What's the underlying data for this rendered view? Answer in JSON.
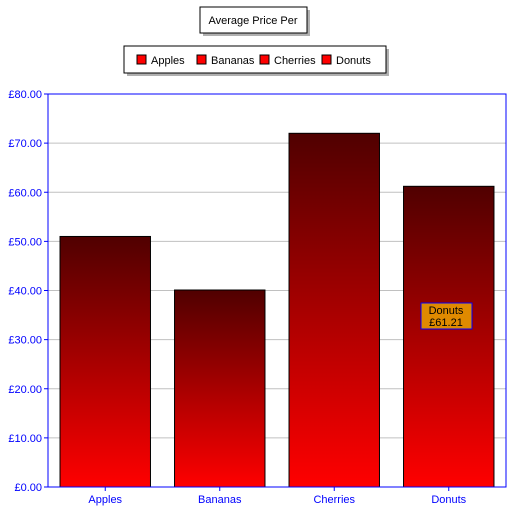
{
  "chart_data": {
    "type": "bar",
    "title": "Average Price Per",
    "categories": [
      "Apples",
      "Bananas",
      "Cherries",
      "Donuts"
    ],
    "series": [
      {
        "name": "Average Price Per",
        "values": [
          51.0,
          40.1,
          72.0,
          61.21
        ]
      }
    ],
    "legend": {
      "position": "top",
      "entries": [
        "Apples",
        "Bananas",
        "Cherries",
        "Donuts"
      ]
    },
    "ylim": [
      0,
      80
    ],
    "yticks": [
      "£0.00",
      "£10.00",
      "£20.00",
      "£30.00",
      "£40.00",
      "£50.00",
      "£60.00",
      "£70.00",
      "£80.00"
    ],
    "grid": true,
    "tooltip": {
      "category": "Donuts",
      "value": "£61.21"
    }
  },
  "colors": {
    "bar_top": "#500000",
    "bar_bottom": "#ff0000",
    "legend_swatch": "#ff0000",
    "axis": "#0000ff",
    "axis_text": "#0000ff",
    "tooltip_fill": "#e08a00",
    "tooltip_text": "#0000aa"
  }
}
